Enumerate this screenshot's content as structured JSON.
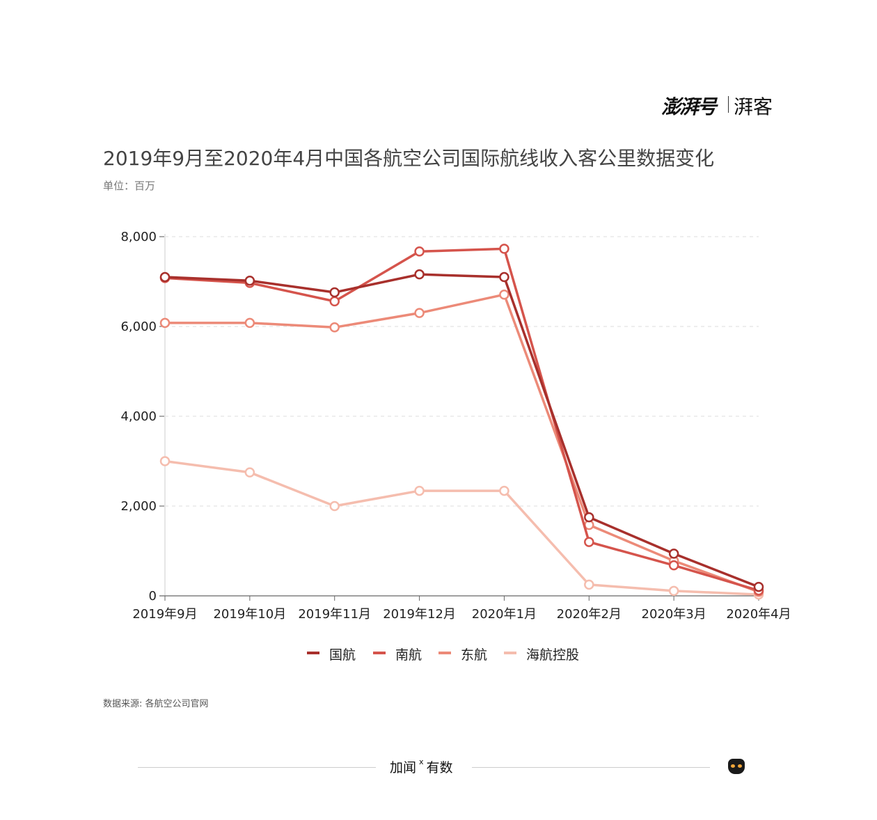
{
  "brand": {
    "logo": "澎湃号",
    "sub": "湃客"
  },
  "title": "2019年9月至2020年4月中国各航空公司国际航线收入客公里数据变化",
  "unit": "单位：百万",
  "source": "数据来源: 各航空公司官网",
  "footer": {
    "left": "加闻",
    "x": "x",
    "right": "有数"
  },
  "chart_data": {
    "type": "line",
    "categories": [
      "2019年9月",
      "2019年10月",
      "2019年11月",
      "2019年12月",
      "2020年1月",
      "2020年2月",
      "2020年3月",
      "2020年4月"
    ],
    "ylim": [
      0,
      8000
    ],
    "yticks": [
      0,
      2000,
      4000,
      6000,
      8000
    ],
    "ytick_labels": [
      "0",
      "2,000",
      "4,000",
      "6,000",
      "8,000"
    ],
    "grid": true,
    "legend_position": "bottom",
    "series": [
      {
        "name": "国航",
        "color": "#a8302c",
        "values": [
          7100,
          7020,
          6760,
          7160,
          7100,
          1750,
          940,
          200
        ]
      },
      {
        "name": "南航",
        "color": "#d5544c",
        "values": [
          7080,
          6970,
          6560,
          7670,
          7730,
          1200,
          680,
          120
        ]
      },
      {
        "name": "东航",
        "color": "#ec8a78",
        "values": [
          6080,
          6080,
          5980,
          6300,
          6710,
          1580,
          780,
          90
        ]
      },
      {
        "name": "海航控股",
        "color": "#f5bdae",
        "values": [
          3000,
          2750,
          2000,
          2340,
          2340,
          250,
          110,
          30
        ]
      }
    ]
  }
}
